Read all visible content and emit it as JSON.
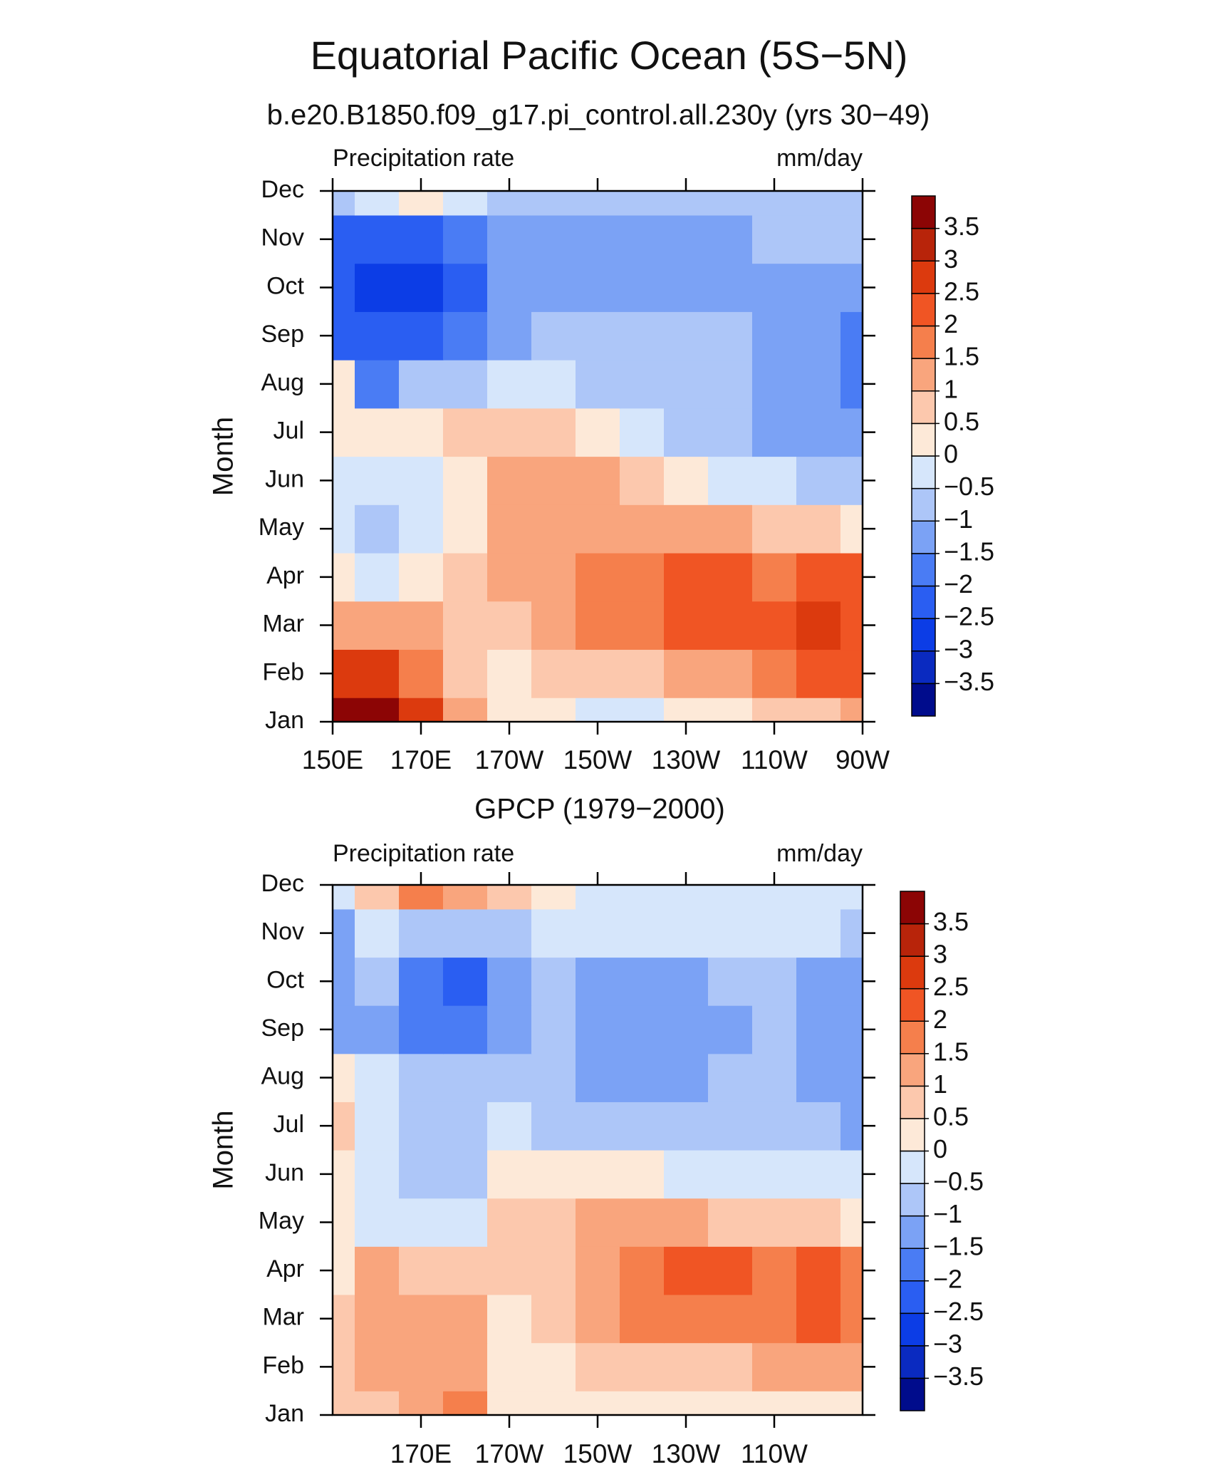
{
  "title": "Equatorial Pacific Ocean (5S−5N)",
  "chart_data": [
    {
      "type": "contour",
      "title": "b.e20.B1850.f09_g17.pi_control.all.230y (yrs 30−49)",
      "left_label": "Precipitation rate",
      "right_label": "mm/day",
      "ylabel": "Month",
      "categories": [
        "Jan",
        "Feb",
        "Mar",
        "Apr",
        "May",
        "Jun",
        "Jul",
        "Aug",
        "Sep",
        "Oct",
        "Nov",
        "Dec"
      ],
      "x": [
        150,
        160,
        170,
        180,
        190,
        200,
        210,
        220,
        230,
        240,
        250,
        260,
        270
      ],
      "xlim": [
        150,
        270
      ],
      "xticks": [
        {
          "value": 150,
          "label": "150E"
        },
        {
          "value": 170,
          "label": "170E"
        },
        {
          "value": 190,
          "label": "170W"
        },
        {
          "value": 210,
          "label": "150W"
        },
        {
          "value": 230,
          "label": "130W"
        },
        {
          "value": 250,
          "label": "110W"
        },
        {
          "value": 270,
          "label": "90W"
        }
      ],
      "z": [
        [
          3.6,
          3.5,
          2.5,
          1,
          0.3,
          0.3,
          -0.2,
          -0.2,
          0.3,
          0.3,
          0.7,
          0.8,
          1.2
        ],
        [
          2.8,
          2.5,
          1.8,
          0.8,
          0.3,
          0.5,
          0.7,
          0.8,
          1,
          1.2,
          1.6,
          2.2,
          2.2
        ],
        [
          1.3,
          1.2,
          1,
          0.8,
          0.8,
          1.2,
          1.6,
          1.8,
          2.2,
          2.3,
          2.4,
          2.6,
          2.4
        ],
        [
          0.2,
          -0.3,
          0.3,
          0.6,
          1.2,
          1.3,
          1.7,
          1.8,
          2,
          2,
          1.8,
          2,
          2.3
        ],
        [
          -0.3,
          -0.7,
          -0.3,
          0.3,
          1,
          1.2,
          1.3,
          1.2,
          1.2,
          1,
          0.8,
          0.6,
          0.3
        ],
        [
          -0.3,
          -0.4,
          -0.2,
          0.4,
          1.1,
          1.2,
          1,
          0.6,
          0.2,
          -0.3,
          -0.5,
          -0.8,
          -0.8
        ],
        [
          0.3,
          0.1,
          0.3,
          0.6,
          0.7,
          0.6,
          0.3,
          -0.2,
          -0.6,
          -0.8,
          -1.1,
          -1.3,
          -1.2
        ],
        [
          0.2,
          -1.6,
          -0.8,
          -0.6,
          -0.4,
          -0.3,
          -0.6,
          -0.8,
          -0.9,
          -1,
          -1.2,
          -1.4,
          -1.6
        ],
        [
          -2.2,
          -2.3,
          -2.2,
          -1.9,
          -1.2,
          -0.8,
          -0.7,
          -0.7,
          -0.8,
          -1,
          -1.2,
          -1.3,
          -1.6
        ],
        [
          -2.3,
          -2.6,
          -2.9,
          -2.4,
          -1.4,
          -1.3,
          -1.2,
          -1.2,
          -1.2,
          -1.3,
          -1.1,
          -1.3,
          -1.3
        ],
        [
          -2.1,
          -2.3,
          -2.2,
          -1.8,
          -1.2,
          -1.1,
          -1.2,
          -1.2,
          -1.2,
          -1.1,
          -0.9,
          -0.8,
          -0.8
        ],
        [
          -1,
          -0.3,
          0.3,
          -0.3,
          -0.6,
          -0.6,
          -0.7,
          -0.7,
          -0.7,
          -0.7,
          -0.7,
          -0.7,
          -0.7
        ]
      ],
      "colorbar": {
        "levels": [
          {
            "value": -3.5,
            "label": "−3.5"
          },
          {
            "value": -3,
            "label": "−3"
          },
          {
            "value": -2.5,
            "label": "−2.5"
          },
          {
            "value": -2,
            "label": "−2"
          },
          {
            "value": -1.5,
            "label": "−1.5"
          },
          {
            "value": -1,
            "label": "−1"
          },
          {
            "value": -0.5,
            "label": "−0.5"
          },
          0,
          0.5,
          1,
          1.5,
          2,
          2.5,
          3,
          3.5
        ],
        "colors": [
          "#000c8c",
          "#0a2ac0",
          "#0c3de6",
          "#2a5ef2",
          "#4a7cf4",
          "#7ba2f5",
          "#adc6f8",
          "#d6e6fb",
          "#fde9d8",
          "#fcc8ad",
          "#f9a57d",
          "#f57f4c",
          "#f05524",
          "#dc3a0e",
          "#b8240a",
          "#8c0505"
        ]
      }
    },
    {
      "type": "contour",
      "title": "GPCP (1979−2000)",
      "left_label": "Precipitation rate",
      "right_label": "mm/day",
      "ylabel": "Month",
      "categories": [
        "Jan",
        "Feb",
        "Mar",
        "Apr",
        "May",
        "Jun",
        "Jul",
        "Aug",
        "Sep",
        "Oct",
        "Nov",
        "Dec"
      ],
      "x": [
        150,
        160,
        170,
        180,
        190,
        200,
        210,
        220,
        230,
        240,
        250,
        260,
        270
      ],
      "xlim": [
        150,
        270
      ],
      "xticks": [
        {
          "value": 170,
          "label": "170E"
        },
        {
          "value": 190,
          "label": "170W"
        },
        {
          "value": 210,
          "label": "150W"
        },
        {
          "value": 230,
          "label": "130W"
        },
        {
          "value": 250,
          "label": "110W"
        }
      ],
      "z": [
        [
          0.6,
          0.8,
          1.2,
          1.6,
          0.3,
          0.2,
          0.1,
          0.1,
          0,
          0.2,
          0.2,
          0.3,
          0.3
        ],
        [
          0.8,
          1.2,
          1.4,
          1.2,
          0.4,
          0.4,
          0.6,
          0.6,
          0.7,
          0.9,
          1,
          1,
          1.2
        ],
        [
          0.7,
          1.3,
          1.2,
          1,
          0.3,
          0.6,
          1.1,
          1.5,
          1.7,
          1.6,
          1.8,
          2,
          1.6
        ],
        [
          0.4,
          1.1,
          0.8,
          0.6,
          0.7,
          0.8,
          1.3,
          1.6,
          2,
          2,
          1.6,
          2,
          1.8
        ],
        [
          0.3,
          -0.3,
          -0.5,
          -0.3,
          0.6,
          0.9,
          1,
          1,
          1,
          0.9,
          0.8,
          0.6,
          0.4
        ],
        [
          0.4,
          -0.4,
          -0.6,
          -0.6,
          0.3,
          0.2,
          0.1,
          0,
          -0.2,
          -0.4,
          -0.4,
          -0.3,
          -0.2
        ],
        [
          0.5,
          -0.2,
          -0.9,
          -0.7,
          -0.4,
          -0.6,
          -0.7,
          -0.8,
          -0.8,
          -0.7,
          -0.8,
          -1,
          -1.1
        ],
        [
          0.4,
          -0.4,
          -0.9,
          -0.8,
          -0.7,
          -0.6,
          -1.1,
          -1.3,
          -1.2,
          -0.8,
          -0.8,
          -1.2,
          -1.2
        ],
        [
          -1.3,
          -1.2,
          -2,
          -1.6,
          -1.1,
          -0.7,
          -1.2,
          -1.3,
          -1.2,
          -1.1,
          -0.8,
          -1.1,
          -1.2
        ],
        [
          -1.3,
          -1,
          -1.7,
          -2.1,
          -1.4,
          -1,
          -1.1,
          -1.2,
          -1.2,
          -1,
          -0.8,
          -1.1,
          -1.2
        ],
        [
          -1.2,
          -0.5,
          -0.7,
          -0.8,
          -0.6,
          -0.5,
          -0.4,
          -0.3,
          -0.3,
          -0.4,
          -0.4,
          -0.5,
          -0.6
        ],
        [
          -0.2,
          0.9,
          1.5,
          1.2,
          0.6,
          0.3,
          -0.3,
          -0.3,
          -0.3,
          -0.3,
          -0.3,
          -0.3,
          -0.3
        ]
      ],
      "colorbar": {
        "levels": [
          {
            "value": -3.5,
            "label": "−3.5"
          },
          {
            "value": -3,
            "label": "−3"
          },
          {
            "value": -2.5,
            "label": "−2.5"
          },
          {
            "value": -2,
            "label": "−2"
          },
          {
            "value": -1.5,
            "label": "−1.5"
          },
          {
            "value": -1,
            "label": "−1"
          },
          {
            "value": -0.5,
            "label": "−0.5"
          },
          0,
          0.5,
          1,
          1.5,
          2,
          2.5,
          3,
          3.5
        ],
        "colors": [
          "#000c8c",
          "#0a2ac0",
          "#0c3de6",
          "#2a5ef2",
          "#4a7cf4",
          "#7ba2f5",
          "#adc6f8",
          "#d6e6fb",
          "#fde9d8",
          "#fcc8ad",
          "#f9a57d",
          "#f57f4c",
          "#f05524",
          "#dc3a0e",
          "#b8240a",
          "#8c0505"
        ]
      }
    }
  ]
}
